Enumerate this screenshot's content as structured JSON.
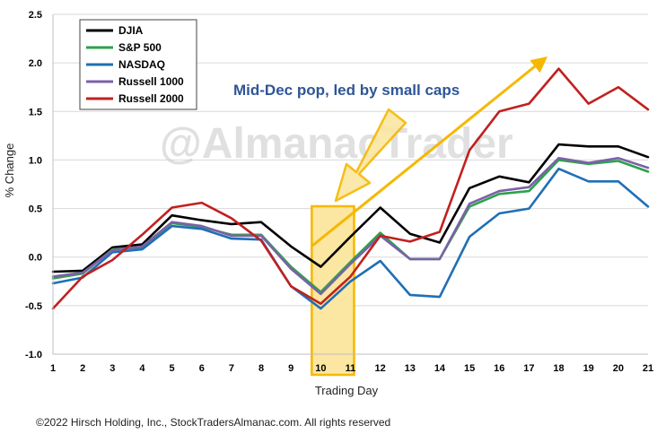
{
  "chart_data": {
    "type": "line",
    "title": "",
    "xlabel": "Trading Day",
    "ylabel": "% Change",
    "x": [
      1,
      2,
      3,
      4,
      5,
      6,
      7,
      8,
      9,
      10,
      11,
      12,
      13,
      14,
      15,
      16,
      17,
      18,
      19,
      20,
      21
    ],
    "xlim": [
      1,
      21
    ],
    "ylim": [
      -1.0,
      2.5
    ],
    "yticks": [
      "2.5",
      "2.0",
      "1.5",
      "1.0",
      "0.5",
      "0.0",
      "-0.5",
      "-1.0"
    ],
    "ytick_values": [
      2.5,
      2.0,
      1.5,
      1.0,
      0.5,
      0.0,
      -0.5,
      -1.0
    ],
    "grid": true,
    "legend_position": "top-left",
    "series": [
      {
        "name": "DJIA",
        "color": "#000000",
        "values": [
          -0.15,
          -0.14,
          0.1,
          0.13,
          0.43,
          0.38,
          0.34,
          0.36,
          0.11,
          -0.1,
          0.21,
          0.51,
          0.24,
          0.15,
          0.71,
          0.83,
          0.77,
          1.16,
          1.14,
          1.14,
          1.03
        ]
      },
      {
        "name": "S&P 500",
        "color": "#2ca24a",
        "values": [
          -0.22,
          -0.17,
          0.08,
          0.1,
          0.35,
          0.31,
          0.23,
          0.23,
          -0.1,
          -0.36,
          -0.05,
          0.25,
          -0.02,
          -0.02,
          0.52,
          0.65,
          0.68,
          1.0,
          0.96,
          0.99,
          0.88
        ]
      },
      {
        "name": "NASDAQ",
        "color": "#1f6fb5",
        "values": [
          -0.27,
          -0.21,
          0.05,
          0.08,
          0.32,
          0.29,
          0.19,
          0.18,
          -0.3,
          -0.53,
          -0.25,
          -0.04,
          -0.39,
          -0.41,
          0.21,
          0.45,
          0.5,
          0.91,
          0.78,
          0.78,
          0.52
        ]
      },
      {
        "name": "Russell 1000",
        "color": "#7b61a8",
        "values": [
          -0.2,
          -0.16,
          0.07,
          0.11,
          0.36,
          0.32,
          0.22,
          0.22,
          -0.12,
          -0.38,
          -0.07,
          0.22,
          -0.02,
          -0.02,
          0.55,
          0.68,
          0.72,
          1.02,
          0.97,
          1.02,
          0.92
        ]
      },
      {
        "name": "Russell 2000",
        "color": "#c0211f",
        "values": [
          -0.53,
          -0.2,
          -0.03,
          0.23,
          0.51,
          0.56,
          0.4,
          0.17,
          -0.3,
          -0.48,
          -0.2,
          0.22,
          0.16,
          0.26,
          1.1,
          1.5,
          1.58,
          1.94,
          1.58,
          1.75,
          1.52
        ]
      }
    ],
    "annotation": "Mid-Dec pop, led by small caps",
    "highlight_range": [
      10,
      11
    ]
  },
  "watermark": "@AlmanacTrader",
  "footer": "©2022 Hirsch Holding, Inc., StockTradersAlmanac.com. All rights reserved",
  "colors": {
    "highlight_fill": "#fbe6a2",
    "highlight_stroke": "#f5b800",
    "arrow": "#f5b800",
    "annotation_text": "#2f5597"
  }
}
